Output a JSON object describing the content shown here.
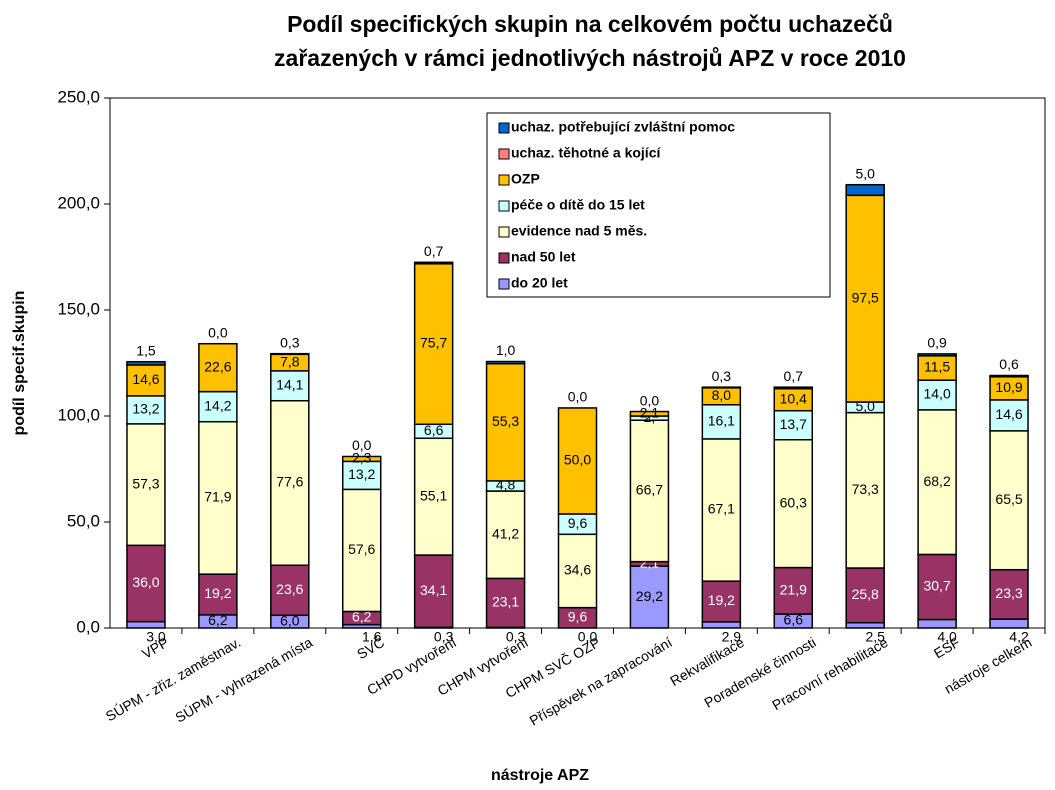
{
  "chart_data": {
    "type": "stacked_bar",
    "title": [
      "Podíl specifických skupin na celkovém počtu uchazečů",
      "zařazených v rámci jednotlivých nástrojů APZ v roce 2010"
    ],
    "x_label": "nástroje APZ",
    "y_label": "podíl specif.skupin",
    "categories": [
      "VPP",
      "SÚPM - zřiz. zaměstnav.",
      "SÚPM - vyhrazená místa",
      "SVČ",
      "CHPD vytvoření",
      "CHPM vytvoření",
      "CHPM SVČ OZP",
      "Příspěvek na zapracování",
      "Rekvalifikace",
      "Poradenské činnosti",
      "Pracovní rehabilitace",
      "ESF",
      "nástroje celkem"
    ],
    "series": [
      {
        "name": "do 20 let",
        "color": "#9999ff",
        "values": [
          3.0,
          6.2,
          6.0,
          1.6,
          0.3,
          0.3,
          0.0,
          29.2,
          2.9,
          6.6,
          2.5,
          4.0,
          4.2
        ],
        "value_labels": [
          "3,0",
          "6,2",
          "6,0",
          "1,6",
          "0,3",
          "0,3",
          "0,0",
          "29,2",
          "2,9",
          "6,6",
          "2,5",
          "4,0",
          "4,2"
        ]
      },
      {
        "name": "nad 50 let",
        "color": "#993366",
        "values": [
          36.0,
          19.2,
          23.6,
          6.2,
          34.1,
          23.1,
          9.6,
          2.1,
          19.2,
          21.9,
          25.8,
          30.7,
          23.3
        ],
        "value_labels": [
          "36,0",
          "19,2",
          "23,6",
          "6,2",
          "34,1",
          "23,1",
          "9,6",
          "2,1",
          "19,2",
          "21,9",
          "25,8",
          "30,7",
          "23,3"
        ]
      },
      {
        "name": "evidence nad 5 měs.",
        "color": "#ffffcc",
        "values": [
          57.3,
          71.9,
          77.6,
          57.6,
          55.1,
          41.2,
          34.6,
          66.7,
          67.1,
          60.3,
          73.3,
          68.2,
          65.5
        ],
        "value_labels": [
          "57,3",
          "71,9",
          "77,6",
          "57,6",
          "55,1",
          "41,2",
          "34,6",
          "66,7",
          "67,1",
          "60,3",
          "73,3",
          "68,2",
          "65,5"
        ]
      },
      {
        "name": "péče o dítě do 15 let",
        "color": "#ccffff",
        "values": [
          13.2,
          14.2,
          14.1,
          13.2,
          6.6,
          4.8,
          9.6,
          2.0,
          16.1,
          13.7,
          5.0,
          14.0,
          14.6
        ],
        "value_labels": [
          "13,2",
          "14,2",
          "14,1",
          "13,2",
          "6,6",
          "4,8",
          "9,6",
          "2,",
          "16,1",
          "13,7",
          "5,0",
          "14,0",
          "14,6"
        ]
      },
      {
        "name": "OZP",
        "color": "#ffc000",
        "values": [
          14.6,
          22.6,
          7.8,
          2.3,
          75.7,
          55.3,
          50.0,
          2.1,
          8.0,
          10.4,
          97.5,
          11.5,
          10.9
        ],
        "value_labels": [
          "14,6",
          "22,6",
          "7,8",
          "2,3",
          "75,7",
          "55,3",
          "50,0",
          "2,1",
          "8,0",
          "10,4",
          "97,5",
          "11,5",
          "10,9"
        ]
      },
      {
        "name": "uchaz. těhotné a kojící",
        "color": "#ff8080",
        "values": [
          null,
          null,
          null,
          null,
          null,
          null,
          null,
          null,
          null,
          null,
          null,
          null,
          null
        ]
      },
      {
        "name": "uchaz. potřebující zvláštní pomoc",
        "color": "#0066cc",
        "values": [
          1.5,
          0.0,
          0.3,
          0.0,
          0.7,
          1.0,
          0.0,
          0.0,
          0.3,
          0.7,
          5.0,
          0.9,
          0.6
        ],
        "value_labels": [
          "1,5",
          "0,0",
          "0,3",
          "0,0",
          "0,7",
          "1,0",
          "0,0",
          "0,0",
          "0,3",
          "0,7",
          "5,0",
          "0,9",
          "0,6"
        ]
      }
    ],
    "ylim": [
      0,
      250
    ],
    "yticks": [
      {
        "value": 0,
        "label": "0,0"
      },
      {
        "value": 50,
        "label": "50,0"
      },
      {
        "value": 100,
        "label": "100,0"
      },
      {
        "value": 150,
        "label": "150,0"
      },
      {
        "value": 200,
        "label": "200,0"
      },
      {
        "value": 250,
        "label": "250,0"
      }
    ]
  }
}
